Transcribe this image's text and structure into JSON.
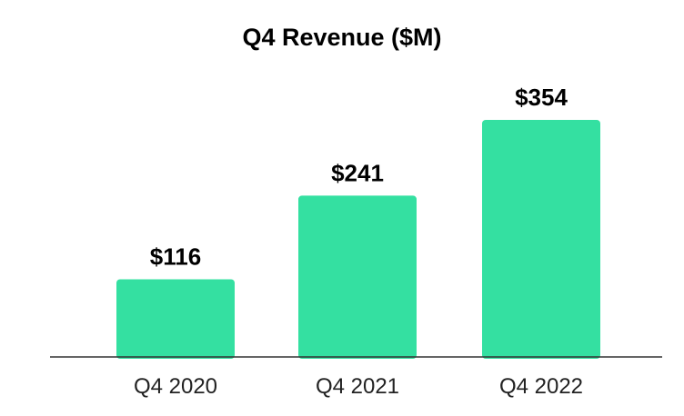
{
  "chart_data": {
    "type": "bar",
    "title": "Q4 Revenue ($M)",
    "categories": [
      "Q4 2020",
      "Q4 2021",
      "Q4 2022"
    ],
    "values": [
      116,
      241,
      354
    ],
    "value_labels": [
      "$116",
      "$241",
      "$354"
    ],
    "xlabel": "",
    "ylabel": "",
    "grid": false,
    "bar_color": "#34e0a1",
    "axis_color": "#333333"
  }
}
